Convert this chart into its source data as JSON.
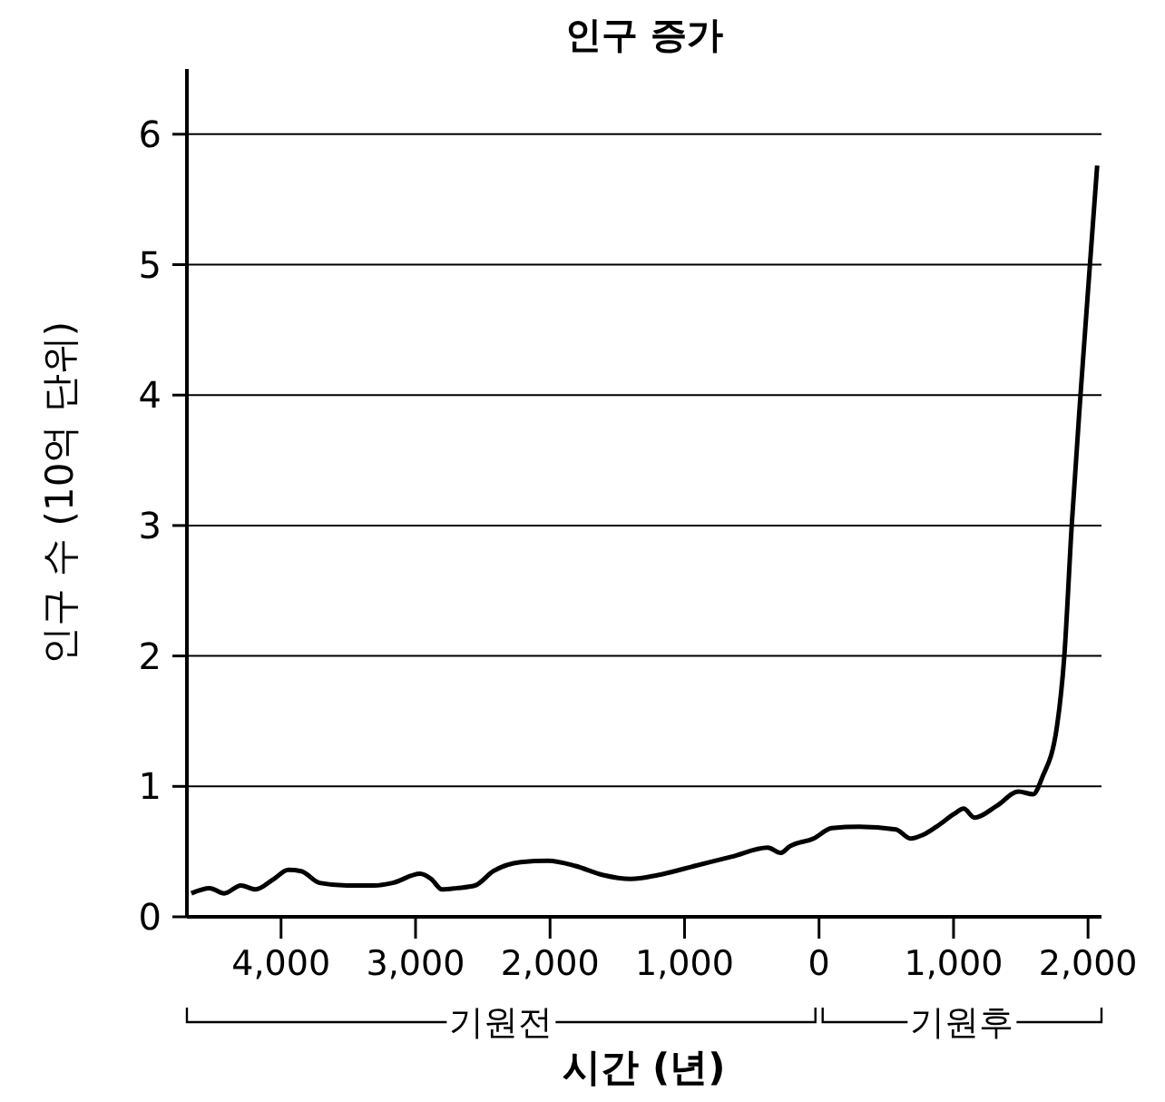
{
  "chart_data": {
    "type": "line",
    "title": "인구 증가",
    "xlabel": "시간 (년)",
    "ylabel": "인구 수 (10억 단위)",
    "x": [
      -4667,
      -4531,
      -4422,
      -4299,
      -4190,
      -4054,
      -3946,
      -3850,
      -3714,
      -3510,
      -3306,
      -3170,
      -2966,
      -2884,
      -2803,
      -2694,
      -2558,
      -2422,
      -2218,
      -2014,
      -1810,
      -1605,
      -1401,
      -1197,
      -925,
      -653,
      -381,
      -286,
      -218,
      -41,
      95,
      299,
      571,
      680,
      776,
      871,
      1007,
      1075,
      1156,
      1320,
      1483,
      1592,
      1660,
      1769,
      1823,
      1878,
      1946,
      2014,
      2068
    ],
    "values": [
      0.18,
      0.22,
      0.18,
      0.24,
      0.21,
      0.29,
      0.36,
      0.35,
      0.26,
      0.24,
      0.24,
      0.26,
      0.33,
      0.29,
      0.21,
      0.22,
      0.24,
      0.35,
      0.42,
      0.43,
      0.39,
      0.32,
      0.29,
      0.32,
      0.39,
      0.46,
      0.53,
      0.49,
      0.54,
      0.6,
      0.68,
      0.69,
      0.67,
      0.6,
      0.63,
      0.69,
      0.79,
      0.83,
      0.76,
      0.85,
      0.96,
      0.94,
      1.07,
      1.46,
      1.99,
      2.99,
      4.03,
      5.0,
      5.76
    ],
    "color": "#000000",
    "xlim": [
      -4700,
      2100
    ],
    "ylim": [
      0,
      6.5
    ],
    "xticks": [
      {
        "value": -4000,
        "label": "4,000"
      },
      {
        "value": -3000,
        "label": "3,000"
      },
      {
        "value": -2000,
        "label": "2,000"
      },
      {
        "value": -1000,
        "label": "1,000"
      },
      0,
      {
        "value": 1000,
        "label": "1,000"
      },
      {
        "value": 2000,
        "label": "2,000"
      }
    ],
    "yticks": [
      0,
      1,
      2,
      3,
      4,
      5,
      6
    ],
    "grid": "y",
    "marker": "none",
    "line_style": "solid",
    "annotations": [
      "기원전",
      "기원후"
    ]
  }
}
